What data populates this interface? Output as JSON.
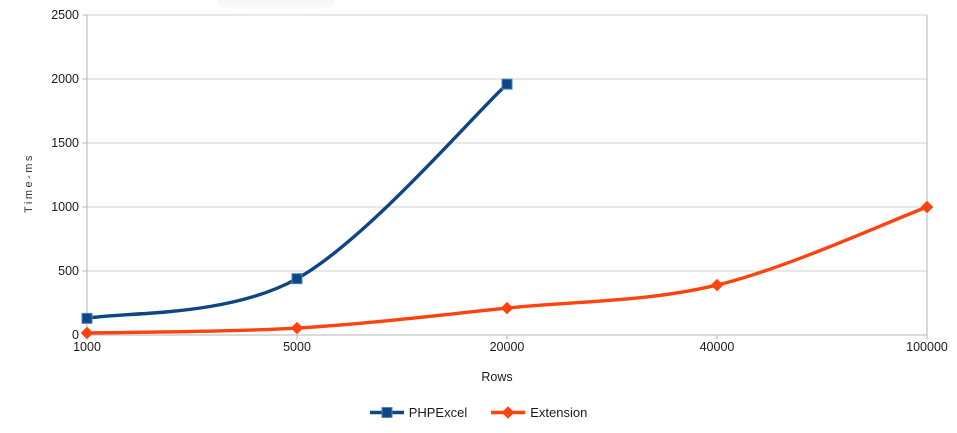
{
  "chart_data": {
    "type": "line",
    "title": "",
    "categories": [
      "1000",
      "5000",
      "20000",
      "40000",
      "100000"
    ],
    "series": [
      {
        "name": "PHPExcel",
        "color": "#0d4585",
        "marker": "square",
        "marker_edge": "#4d84c4",
        "values": [
          130,
          440,
          1960
        ]
      },
      {
        "name": "Extension",
        "color": "#FF420E",
        "marker": "diamond",
        "marker_edge": "#FF420E",
        "values": [
          16,
          54,
          210,
          390,
          1000
        ]
      }
    ],
    "xlabel": "Rows",
    "ylabel": "Time-ms",
    "ylim": [
      0,
      2500
    ],
    "ytick_step": 500,
    "y_tick_labels": [
      "0",
      "500",
      "1000",
      "1500",
      "2000",
      "2500"
    ],
    "x_tick_labels": [
      "1000",
      "5000",
      "20000",
      "40000",
      "100000"
    ],
    "grid": "horizontal",
    "legend_position": "bottom",
    "colors": {
      "grid_line": "#d0d0d0",
      "axis_line": "#b5b5b5",
      "tick_text": "#1b1b1b",
      "background": "#ffffff"
    }
  }
}
